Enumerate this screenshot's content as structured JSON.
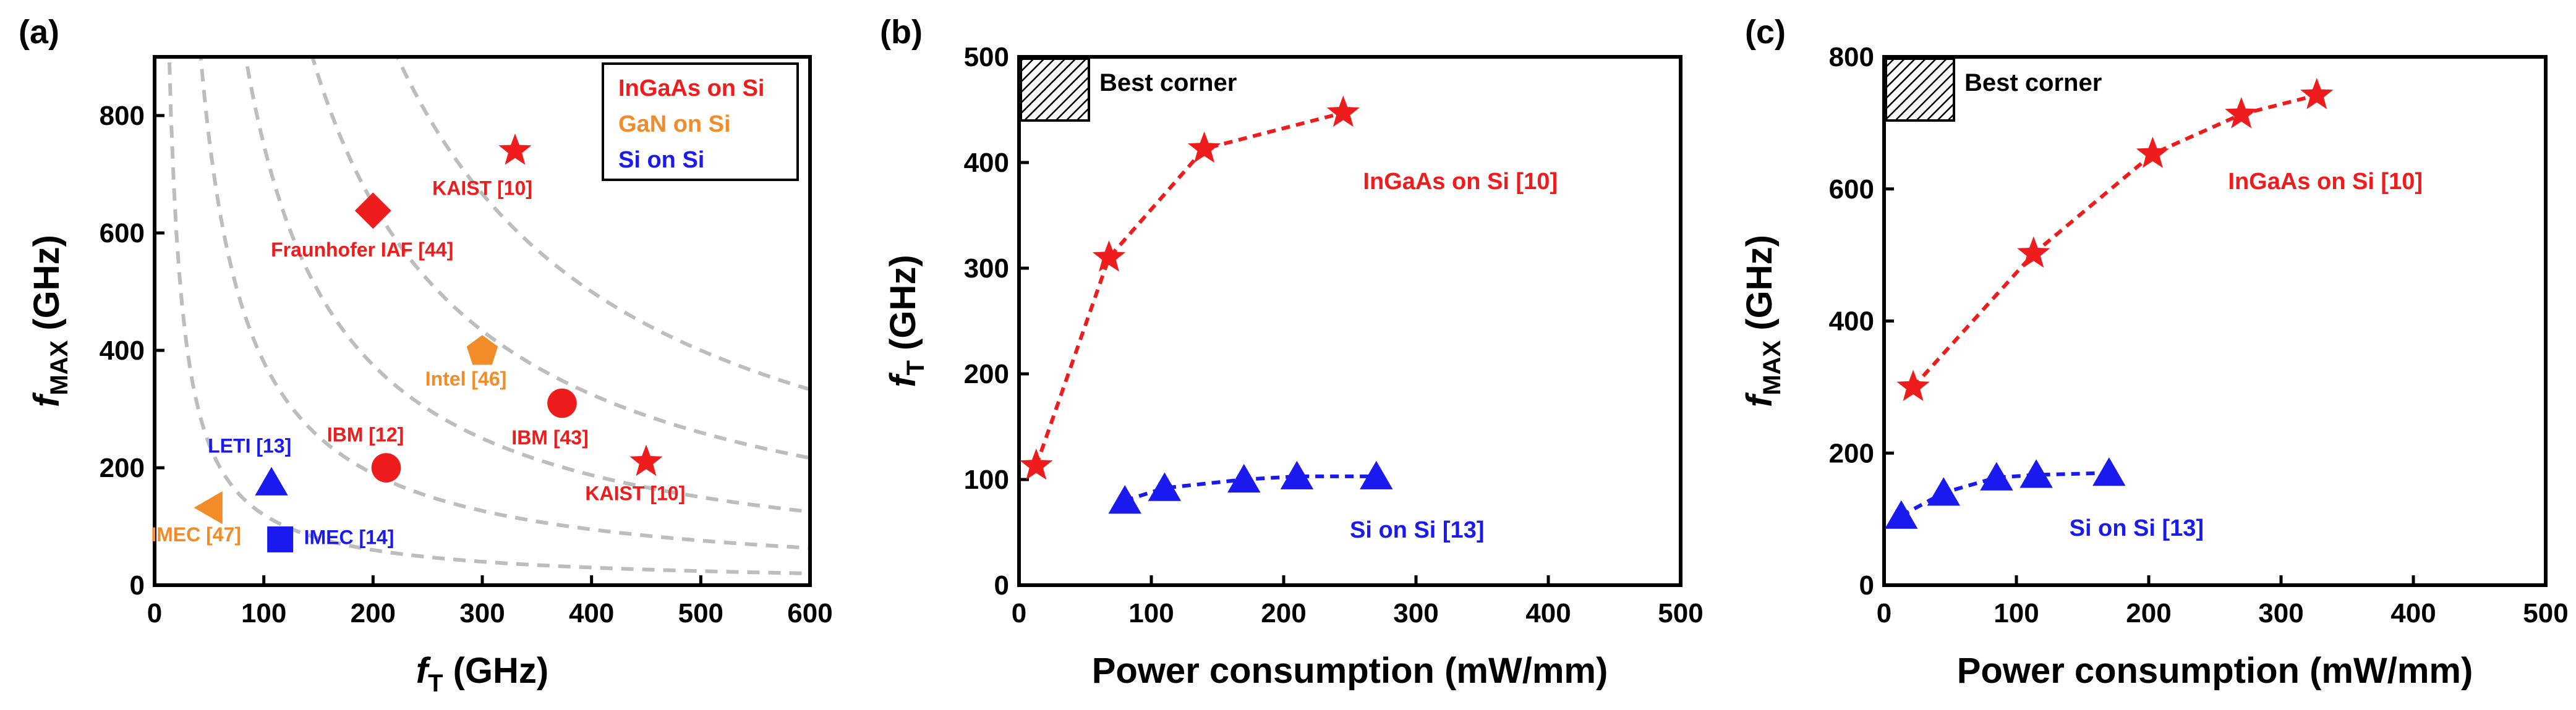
{
  "colors": {
    "red": "#ee1c1c",
    "orange": "#f28c28",
    "blue": "#1a1aee",
    "grid_curve": "#bdbdbd",
    "axis": "#000000"
  },
  "chart_data": [
    {
      "id": "a",
      "type": "scatter",
      "panel_label": "(a)",
      "xlabel": "f",
      "xlabel_sub": "T",
      "xlabel_unit": " (GHz)",
      "ylabel": "f",
      "ylabel_sub": "MAX",
      "ylabel_unit": " (GHz)",
      "xlim": [
        0,
        600
      ],
      "ylim": [
        0,
        900
      ],
      "xticks": [
        0,
        100,
        200,
        300,
        400,
        500,
        600
      ],
      "yticks": [
        0,
        200,
        400,
        600,
        800
      ],
      "legend": [
        {
          "label": "InGaAs on Si",
          "color_key": "red"
        },
        {
          "label": "GaN on Si",
          "color_key": "orange"
        },
        {
          "label": "Si on Si",
          "color_key": "blue"
        }
      ],
      "iso_curves_k": [
        12000,
        38000,
        75000,
        130000,
        200000
      ],
      "points": [
        {
          "x": 330,
          "y": 740,
          "marker": "star",
          "color_key": "red",
          "label": "KAIST [10]",
          "label_x": 300,
          "label_y": 665
        },
        {
          "x": 450,
          "y": 210,
          "marker": "star",
          "color_key": "red",
          "label": "KAIST [10]",
          "label_x": 440,
          "label_y": 145
        },
        {
          "x": 200,
          "y": 638,
          "marker": "diamond",
          "color_key": "red",
          "label": "Fraunhofer IAF [44]",
          "label_x": 190,
          "label_y": 560
        },
        {
          "x": 300,
          "y": 398,
          "marker": "pentagon",
          "color_key": "orange",
          "label": "Intel [46]",
          "label_x": 285,
          "label_y": 340
        },
        {
          "x": 373,
          "y": 310,
          "marker": "circle",
          "color_key": "red",
          "label": "IBM [43]",
          "label_x": 362,
          "label_y": 240
        },
        {
          "x": 212,
          "y": 200,
          "marker": "circle",
          "color_key": "red",
          "label": "IBM [12]",
          "label_x": 193,
          "label_y": 245
        },
        {
          "x": 107,
          "y": 175,
          "marker": "triangle_up",
          "color_key": "blue",
          "label": "LETI [13]",
          "label_x": 87,
          "label_y": 226
        },
        {
          "x": 55,
          "y": 132,
          "marker": "triangle_left",
          "color_key": "orange",
          "label": "IMEC [47]",
          "label_x": 38,
          "label_y": 75
        },
        {
          "x": 115,
          "y": 78,
          "marker": "square",
          "color_key": "blue",
          "label": "IMEC [14]",
          "label_x": 178,
          "label_y": 70
        }
      ]
    },
    {
      "id": "b",
      "type": "line",
      "panel_label": "(b)",
      "xlabel": "Power consumption (mW/mm)",
      "ylabel": "f",
      "ylabel_sub": "T",
      "ylabel_unit": " (GHz)",
      "xlim": [
        0,
        500
      ],
      "ylim": [
        0,
        500
      ],
      "xticks": [
        0,
        100,
        200,
        300,
        400,
        500
      ],
      "yticks": [
        0,
        100,
        200,
        300,
        400,
        500
      ],
      "best_corner_label": "Best corner",
      "series": [
        {
          "name": "InGaAs on Si [10]",
          "color_key": "red",
          "marker": "star",
          "x": [
            13,
            68,
            140,
            245
          ],
          "y": [
            113,
            310,
            413,
            447
          ],
          "label_x": 260,
          "label_y": 375
        },
        {
          "name": "Si on Si [13]",
          "color_key": "blue",
          "marker": "triangle_up",
          "x": [
            80,
            110,
            170,
            210,
            270
          ],
          "y": [
            80,
            92,
            100,
            103,
            103
          ],
          "label_x": 250,
          "label_y": 45
        }
      ]
    },
    {
      "id": "c",
      "type": "line",
      "panel_label": "(c)",
      "xlabel": "Power consumption (mW/mm)",
      "ylabel": "f",
      "ylabel_sub": "MAX",
      "ylabel_unit": " (GHz)",
      "xlim": [
        0,
        500
      ],
      "ylim": [
        0,
        800
      ],
      "xticks": [
        0,
        100,
        200,
        300,
        400,
        500
      ],
      "yticks": [
        0,
        200,
        400,
        600,
        800
      ],
      "best_corner_label": "Best corner",
      "series": [
        {
          "name": "InGaAs on Si [10]",
          "color_key": "red",
          "marker": "star",
          "x": [
            22,
            113,
            203,
            270,
            327
          ],
          "y": [
            300,
            502,
            653,
            713,
            742
          ],
          "label_x": 260,
          "label_y": 600
        },
        {
          "name": "Si on Si [13]",
          "color_key": "blue",
          "marker": "triangle_up",
          "x": [
            13,
            45,
            85,
            115,
            170
          ],
          "y": [
            105,
            140,
            163,
            167,
            170
          ],
          "label_x": 140,
          "label_y": 75
        }
      ]
    }
  ]
}
